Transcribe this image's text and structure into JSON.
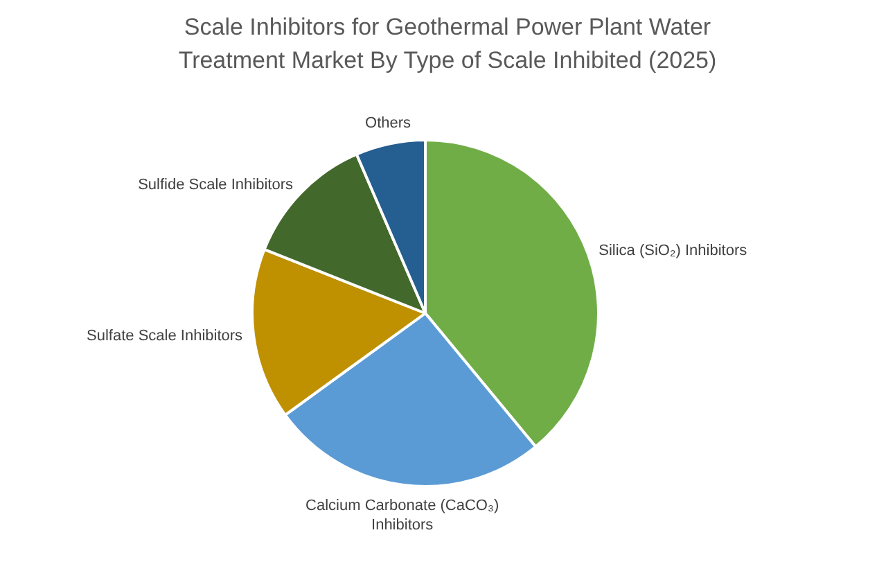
{
  "chart_data": {
    "type": "pie",
    "title": "Scale Inhibitors for Geothermal Power Plant Water Treatment Market By Type of Scale Inhibited (2025)",
    "categories": [
      "Silica (SiO₂) Inhibitors",
      "Calcium Carbonate (CaCO₃) Inhibitors",
      "Sulfate Scale Inhibitors",
      "Sulfide Scale Inhibitors",
      "Others"
    ],
    "values": [
      39,
      26,
      16,
      12.5,
      6.5
    ],
    "colors": [
      "#70ad47",
      "#5b9bd5",
      "#bf9000",
      "#43682b",
      "#255e91"
    ],
    "legend": false
  }
}
